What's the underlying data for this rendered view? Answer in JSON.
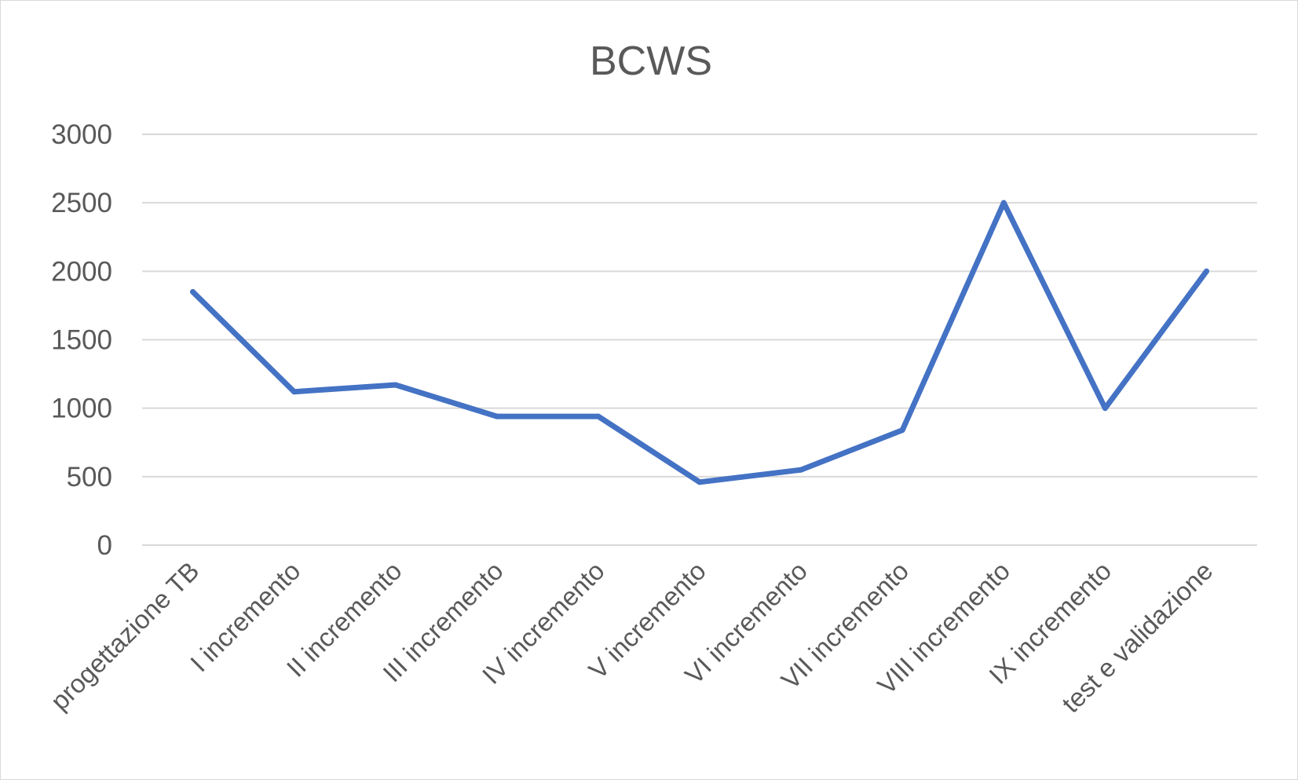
{
  "chart_data": {
    "type": "line",
    "title": "BCWS",
    "xlabel": "",
    "ylabel": "",
    "categories": [
      "progettazione TB",
      "I incremento",
      "II incremento",
      "III incremento",
      "IV incremento",
      "V incremento",
      "VI incremento",
      "VII incremento",
      "VIII incremento",
      "IX incremento",
      "test e validazione"
    ],
    "series": [
      {
        "values": [
          1850,
          1120,
          1170,
          940,
          940,
          460,
          550,
          840,
          2500,
          1000,
          2000
        ]
      }
    ],
    "ylim": [
      0,
      3000
    ],
    "yticks": [
      "0",
      "500",
      "1000",
      "1500",
      "2000",
      "2500",
      "3000"
    ],
    "grid": true,
    "legend": "none",
    "colors": {
      "series": "#4472c4",
      "grid": "#d9d9d9",
      "text": "#595959"
    }
  }
}
